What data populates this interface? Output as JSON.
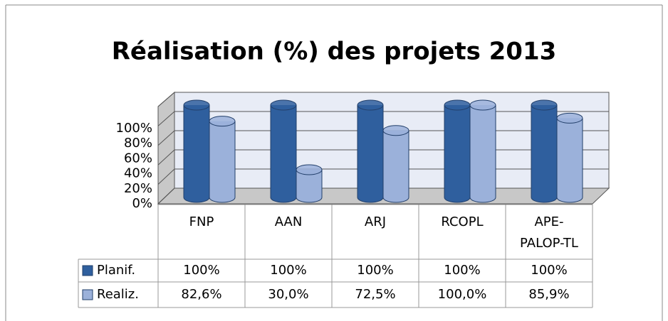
{
  "chart_data": {
    "type": "bar",
    "title": "Réalisation (%) des projets 2013",
    "categories": [
      "FNP",
      "AAN",
      "ARJ",
      "RCOPL",
      "APE-PALOP-TL"
    ],
    "series": [
      {
        "name": "Planif.",
        "color": "#2f5f9e",
        "values": [
          100,
          100,
          100,
          100,
          100
        ],
        "value_labels": [
          "100%",
          "100%",
          "100%",
          "100%",
          "100%"
        ]
      },
      {
        "name": "Realiz.",
        "color": "#9bb1da",
        "values": [
          82.6,
          30.0,
          72.5,
          100.0,
          85.9
        ],
        "value_labels": [
          "82,6%",
          "30,0%",
          "72,5%",
          "100,0%",
          "85,9%"
        ]
      }
    ],
    "ylim": [
      0,
      100
    ],
    "yticks": [
      {
        "value": 0,
        "label": "0%"
      },
      {
        "value": 20,
        "label": "20%"
      },
      {
        "value": 40,
        "label": "40%"
      },
      {
        "value": 60,
        "label": "60%"
      },
      {
        "value": 80,
        "label": "80%"
      },
      {
        "value": 100,
        "label": "100%"
      }
    ],
    "grid": true
  }
}
